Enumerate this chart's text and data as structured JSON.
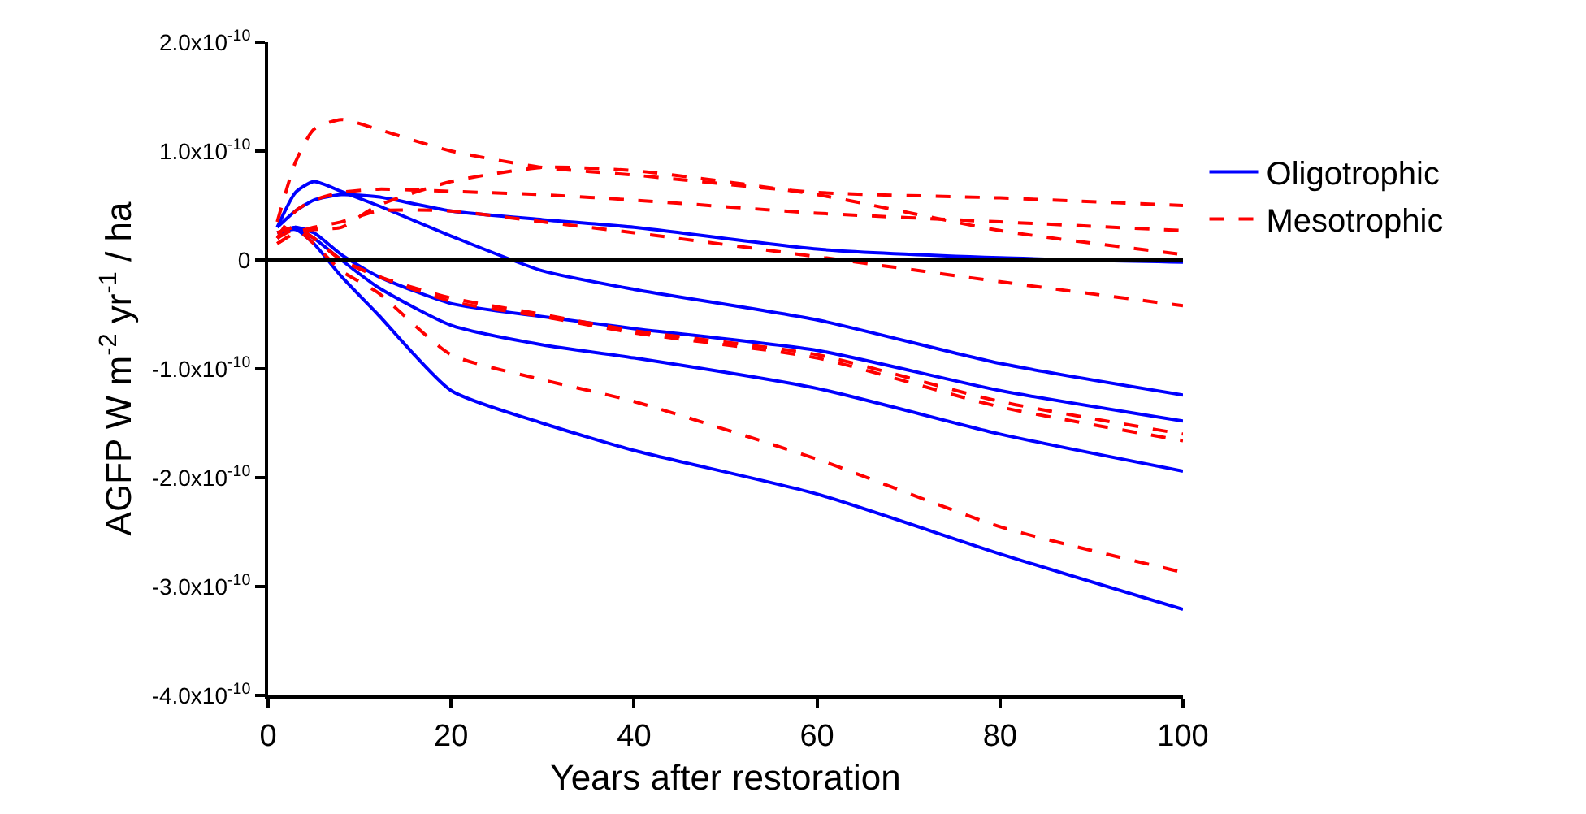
{
  "chart_data": {
    "type": "line",
    "xlabel": "Years after restoration",
    "ylabel": "AGFP W m$^{-2}$ yr$^{-1}$ / ha",
    "xlim": [
      0,
      100
    ],
    "xticks": [
      0,
      20,
      40,
      60,
      80,
      100
    ],
    "ylim": [
      -4e-10,
      2e-10
    ],
    "yticks": [
      {
        "value": 2e-10,
        "label": "2.0x10$^{-10}$"
      },
      {
        "value": 1e-10,
        "label": "1.0x10$^{-10}$"
      },
      0,
      {
        "value": -1e-10,
        "label": "-1.0x10$^{-10}$"
      },
      {
        "value": -2e-10,
        "label": "-2.0x10$^{-10}$"
      },
      {
        "value": -3e-10,
        "label": "-3.0x10$^{-10}$"
      },
      {
        "value": -4e-10,
        "label": "-4.0x10$^{-10}$"
      }
    ],
    "x": [
      1,
      3,
      5,
      8,
      12,
      20,
      30,
      40,
      60,
      80,
      100
    ],
    "legend": "right",
    "marker": "none",
    "ref_lines": [
      {
        "axis": "y",
        "value": 0,
        "color": "#000000",
        "line_style": "solid"
      }
    ],
    "series": [
      {
        "name": "Oligotrophic",
        "color": "#0000ff",
        "line_style": "solid",
        "values": [
          3e-11,
          6.2e-11,
          7.2e-11,
          6.3e-11,
          5e-11,
          2.2e-11,
          -1e-11,
          -2.7e-11,
          -5.5e-11,
          -9.5e-11,
          -1.24e-10
        ]
      },
      {
        "color": "#0000ff",
        "line_style": "solid",
        "values": [
          3e-11,
          4.5e-11,
          5.5e-11,
          6e-11,
          5.8e-11,
          4.5e-11,
          3.7e-11,
          3e-11,
          1e-11,
          2e-12,
          -2e-12
        ]
      },
      {
        "color": "#0000ff",
        "line_style": "solid",
        "values": [
          2.5e-11,
          3e-11,
          2.5e-11,
          5e-12,
          -1.5e-11,
          -4e-11,
          -5.2e-11,
          -6.3e-11,
          -8.3e-11,
          -1.2e-10,
          -1.48e-10
        ]
      },
      {
        "color": "#0000ff",
        "line_style": "solid",
        "values": [
          2e-11,
          3e-11,
          2e-11,
          0,
          -2.5e-11,
          -6e-11,
          -7.8e-11,
          -9e-11,
          -1.18e-10,
          -1.6e-10,
          -1.94e-10
        ]
      },
      {
        "color": "#0000ff",
        "line_style": "solid",
        "values": [
          2.5e-11,
          2.8e-11,
          1.5e-11,
          -1.5e-11,
          -5e-11,
          -1.2e-10,
          -1.5e-10,
          -1.75e-10,
          -2.15e-10,
          -2.7e-10,
          -3.21e-10
        ]
      },
      {
        "name": "Mesotrophic",
        "color": "#ff0000",
        "line_style": "dashed",
        "values": [
          3.5e-11,
          9e-11,
          1.2e-10,
          1.29e-10,
          1.2e-10,
          1e-10,
          8.5e-11,
          7.8e-11,
          6.2e-11,
          5.7e-11,
          5e-11
        ]
      },
      {
        "color": "#ff0000",
        "line_style": "dashed",
        "values": [
          1.5e-11,
          2.5e-11,
          2.8e-11,
          3e-11,
          5e-11,
          7.2e-11,
          8.5e-11,
          8.2e-11,
          6e-11,
          2.7e-11,
          5e-12
        ]
      },
      {
        "color": "#ff0000",
        "line_style": "dashed",
        "values": [
          2e-11,
          4.5e-11,
          5.5e-11,
          6.2e-11,
          6.5e-11,
          6.3e-11,
          6e-11,
          5.5e-11,
          4.3e-11,
          3.5e-11,
          2.7e-11
        ]
      },
      {
        "color": "#ff0000",
        "line_style": "dashed",
        "values": [
          1.5e-11,
          2.5e-11,
          3e-11,
          3.5e-11,
          4.5e-11,
          4.5e-11,
          3.5e-11,
          2.5e-11,
          3e-12,
          -2e-11,
          -4.2e-11
        ]
      },
      {
        "color": "#ff0000",
        "line_style": "dashed",
        "values": [
          2.5e-11,
          3e-11,
          2e-11,
          0,
          -1.5e-11,
          -3.5e-11,
          -5e-11,
          -6.5e-11,
          -8.7e-11,
          -1.3e-10,
          -1.6e-10
        ]
      },
      {
        "color": "#ff0000",
        "line_style": "dashed",
        "values": [
          2.5e-11,
          3e-11,
          2e-11,
          0,
          -1.5e-11,
          -3.8e-11,
          -5.2e-11,
          -6.7e-11,
          -9e-11,
          -1.35e-10,
          -1.66e-10
        ]
      },
      {
        "color": "#ff0000",
        "line_style": "dashed",
        "values": [
          2e-11,
          2.8e-11,
          1.5e-11,
          -1e-11,
          -3e-11,
          -8.7e-11,
          -1.1e-10,
          -1.3e-10,
          -1.83e-10,
          -2.45e-10,
          -2.87e-10
        ]
      }
    ]
  }
}
